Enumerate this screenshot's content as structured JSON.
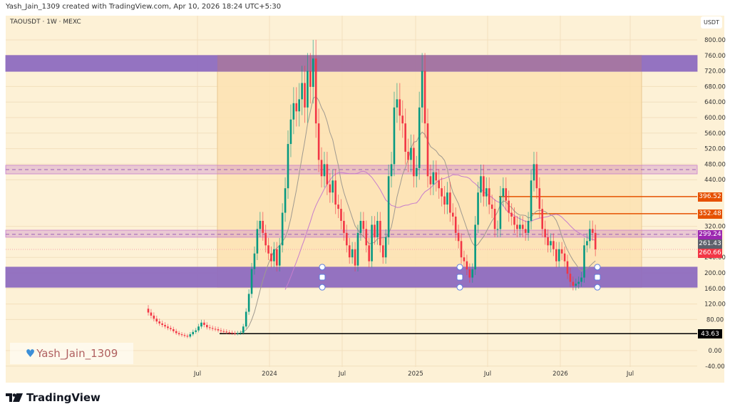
{
  "header": {
    "credit": "Yash_Jain_1309 created with TradingView.com, Apr 10, 2026 18:24 UTC+5:30",
    "symbol": "TAOUSDT · 1W · MEXC"
  },
  "watermark": {
    "icon": "blue-heart-icon",
    "text": "Yash_Jain_1309"
  },
  "logo": {
    "icon": "tradingview-logo-icon",
    "text": "TradingView"
  },
  "colors": {
    "background": "#fdf1d6",
    "up": "#089981",
    "down": "#f23645",
    "zone": "#8e6cc0",
    "range_box": "#fde2b2",
    "resistance_line": "#e65100",
    "support_line": "#000000",
    "ma_fast": "#a09a90",
    "ma_slow": "#c77dcc"
  },
  "chart_data": {
    "type": "candlestick",
    "title": "TAOUSDT · 1W · MEXC",
    "ylabel": "USDT",
    "ylim": [
      -40,
      800
    ],
    "y_ticks": [
      "800.00",
      "760.00",
      "720.00",
      "680.00",
      "640.00",
      "600.00",
      "560.00",
      "520.00",
      "480.00",
      "440.00",
      "320.00",
      "240.00",
      "200.00",
      "160.00",
      "120.00",
      "80.00",
      "0.00",
      "-40.00"
    ],
    "x_ticks": [
      "Jul",
      "2024",
      "Jul",
      "2025",
      "Jul",
      "2026",
      "Jul"
    ],
    "grid": true,
    "close": [
      98,
      90,
      82,
      75,
      70,
      66,
      62,
      58,
      55,
      50,
      45,
      42,
      40,
      38,
      36,
      42,
      48,
      52,
      62,
      72,
      66,
      60,
      58,
      56,
      55,
      52,
      50,
      49,
      47,
      46,
      45,
      44,
      45,
      46,
      62,
      100,
      146,
      210,
      250,
      313,
      334,
      303,
      271,
      250,
      230,
      261,
      219,
      271,
      355,
      418,
      532,
      595,
      637,
      616,
      647,
      689,
      626,
      720,
      679,
      752,
      585,
      491,
      449,
      480,
      428,
      407,
      438,
      376,
      365,
      334,
      303,
      271,
      240,
      261,
      219,
      303,
      334,
      313,
      271,
      230,
      324,
      292,
      334,
      271,
      240,
      292,
      449,
      480,
      626,
      647,
      605,
      585,
      512,
      491,
      522,
      449,
      470,
      626,
      720,
      585,
      449,
      428,
      459,
      438,
      418,
      397,
      376,
      407,
      355,
      345,
      303,
      282,
      240,
      230,
      209,
      188,
      209,
      324,
      407,
      449,
      397,
      418,
      376,
      365,
      313,
      313,
      397,
      418,
      386,
      355,
      345,
      324,
      313,
      324,
      313,
      303,
      334,
      438,
      480,
      418,
      365,
      313,
      292,
      271,
      282,
      261,
      230,
      261,
      250,
      230,
      198,
      177,
      167,
      172,
      177,
      188,
      271,
      282,
      313,
      303,
      260.66
    ],
    "zones": [
      {
        "from": 719,
        "to": 760,
        "color": "#8e6cc0"
      },
      {
        "from": 163,
        "to": 215,
        "color": "#8e6cc0"
      },
      {
        "from": 455,
        "to": 477,
        "level": 466,
        "color": "#c77dcc"
      },
      {
        "from": 292,
        "to": 310,
        "level": 299.24,
        "color": "#c77dcc"
      }
    ],
    "range_box": {
      "from": 163,
      "to": 760
    },
    "levels": [
      {
        "value": 396.52,
        "label": "396.52",
        "color": "#e65100"
      },
      {
        "value": 352.48,
        "label": "352.48",
        "color": "#e65100"
      },
      {
        "value": 299.24,
        "label": "299.24",
        "color": "#9c27b0"
      },
      {
        "value": 261.43,
        "label": "261.43",
        "color": "#5d606b"
      },
      {
        "value": 260.66,
        "label": "260.66",
        "color": "#f23645"
      },
      {
        "value": 43.63,
        "label": "43.63",
        "color": "#000000"
      }
    ]
  }
}
